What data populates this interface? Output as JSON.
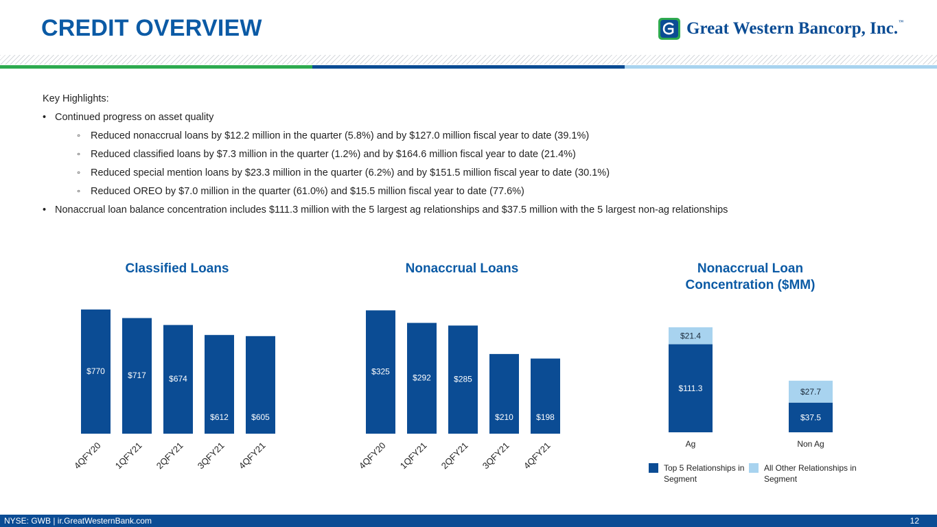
{
  "header": {
    "title": "CREDIT OVERVIEW",
    "logo_text": "Great Western Bancorp, Inc.",
    "logo_tm": "™"
  },
  "highlights": {
    "heading": "Key Highlights:",
    "bullet_char": "•",
    "sub_bullet_char": "◦",
    "items": [
      "Continued progress on asset quality",
      "Reduced nonaccrual loans by $12.2 million in the quarter (5.8%) and by $127.0 million fiscal year to date (39.1%)",
      "Reduced classified loans by $7.3 million in the quarter (1.2%) and by $164.6 million fiscal year to date (21.4%)",
      "Reduced special mention loans by $23.3 million in the quarter (6.2%) and by $151.5 million fiscal year to date (30.1%)",
      "Reduced OREO by $7.0 million in the quarter (61.0%) and $15.5 million fiscal year to date (77.6%)",
      "Nonaccrual loan balance concentration includes $111.3 million with the 5 largest ag relationships and $37.5 million with the 5 largest non-ag relationships"
    ]
  },
  "colors": {
    "primary": "#0b4c94",
    "title_blue": "#0b5aa5",
    "light_blue": "#a8d3ef",
    "green": "#2eaa4f"
  },
  "chart_data": [
    {
      "type": "bar",
      "title": "Classified Loans",
      "categories": [
        "4QFY20",
        "1QFY21",
        "2QFY21",
        "3QFY21",
        "4QFY21"
      ],
      "values": [
        770,
        717,
        674,
        612,
        605
      ],
      "labels": [
        "$770",
        "$717",
        "$674",
        "$612",
        "$605"
      ],
      "ylim": [
        0,
        800
      ],
      "grid": false
    },
    {
      "type": "bar",
      "title": "Nonaccrual Loans",
      "categories": [
        "4QFY20",
        "1QFY21",
        "2QFY21",
        "3QFY21",
        "4QFY21"
      ],
      "values": [
        325,
        292,
        285,
        210,
        198
      ],
      "labels": [
        "$325",
        "$292",
        "$285",
        "$210",
        "$198"
      ],
      "ylim": [
        0,
        340
      ],
      "grid": false
    },
    {
      "type": "bar",
      "stacked": true,
      "title": "Nonaccrual Loan Concentration ($MM)",
      "categories": [
        "Ag",
        "Non Ag"
      ],
      "series": [
        {
          "name": "Top 5 Relationships in Segment",
          "values": [
            111.3,
            37.5
          ],
          "labels": [
            "$111.3",
            "$37.5"
          ]
        },
        {
          "name": "All Other Relationships in Segment",
          "values": [
            21.4,
            27.7
          ],
          "labels": [
            "$21.4",
            "$27.7"
          ]
        }
      ],
      "ylim": [
        0,
        140
      ],
      "legend": "bottom",
      "grid": false
    }
  ],
  "footer": {
    "left": "NYSE: GWB  |  ir.GreatWesternBank.com",
    "page": "12"
  }
}
